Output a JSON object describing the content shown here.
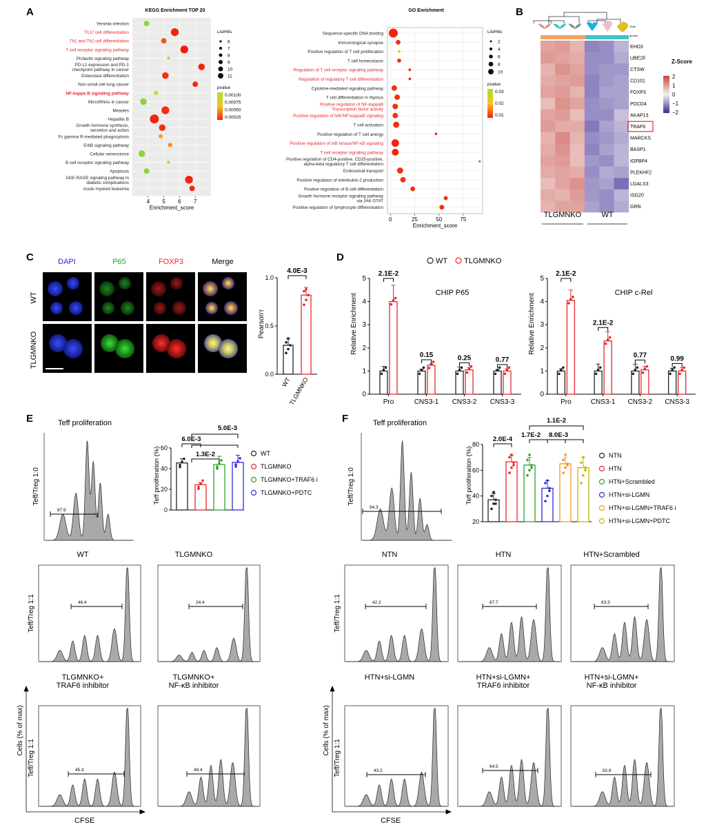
{
  "panel_letters": [
    "A",
    "B",
    "C",
    "D",
    "E",
    "F"
  ],
  "colors": {
    "red": "#e8262a",
    "orange": "#f7931e",
    "green": "#2ca02c",
    "blue": "#2b2bd4",
    "olive": "#c8b400",
    "grey": "#5a5a5a",
    "black": "#222222"
  },
  "chart_data": [
    {
      "panel": "A",
      "type": "scatter",
      "title": "KEGG Enrichment TOP 20",
      "xlabel": "Enrichment_score",
      "xlim": [
        3,
        8
      ],
      "xticks": [
        4,
        5,
        6,
        7
      ],
      "size_legend_title": "ListHits",
      "size_legend": [
        6,
        7,
        8,
        9,
        10,
        11
      ],
      "color_legend_title": "pvalue",
      "color_legend": [
        "0.00100",
        "0.00075",
        "0.00050",
        "0.00025"
      ],
      "terms": [
        {
          "label": [
            "Yersinia infection"
          ],
          "x": 3.9,
          "hits": 8,
          "color": "#8fd43a",
          "highlight": false
        },
        {
          "label": [
            "Th17 cell differentiation"
          ],
          "x": 5.7,
          "hits": 10,
          "color": "#f2240e",
          "highlight": true
        },
        {
          "label": [
            "Th1 and Th2 cell differentiation"
          ],
          "x": 5.0,
          "hits": 8,
          "color": "#f25a12",
          "highlight": true
        },
        {
          "label": [
            "T cell receptor signaling pathway"
          ],
          "x": 6.3,
          "hits": 10,
          "color": "#f21a0e",
          "highlight": true
        },
        {
          "label": [
            "Prolactin signaling pathway"
          ],
          "x": 5.3,
          "hits": 6,
          "color": "#b4df2a",
          "highlight": false
        },
        {
          "label": [
            "PD-L1 expression and PD-1",
            "checkpoint pathway in cancer"
          ],
          "x": 7.4,
          "hits": 9,
          "color": "#f2240e",
          "highlight": false
        },
        {
          "label": [
            "Osteoclast differentiation"
          ],
          "x": 5.1,
          "hits": 9,
          "color": "#f2300e",
          "highlight": false
        },
        {
          "label": [
            "Non-small cell lung cancer"
          ],
          "x": 7.0,
          "hits": 8,
          "color": "#f2240e",
          "highlight": false
        },
        {
          "label": [
            "NF-kappa B signaling pathway"
          ],
          "x": 4.5,
          "hits": 7,
          "color": "#b4df2a",
          "highlight": true,
          "bold": true
        },
        {
          "label": [
            "MicroRNAs in cancer"
          ],
          "x": 3.7,
          "hits": 9,
          "color": "#8fd43a",
          "highlight": false
        },
        {
          "label": [
            "Measles"
          ],
          "x": 5.1,
          "hits": 10,
          "color": "#f2300e",
          "highlight": false
        },
        {
          "label": [
            "Hepatitis B"
          ],
          "x": 4.4,
          "hits": 11,
          "color": "#f2240e",
          "highlight": false
        },
        {
          "label": [
            "Growth hormone synthesis,",
            "secretion and action"
          ],
          "x": 4.9,
          "hits": 9,
          "color": "#f2300e",
          "highlight": false
        },
        {
          "label": [
            "Fc gamma R-mediated phagocytosis"
          ],
          "x": 4.8,
          "hits": 7,
          "color": "#f7a21e",
          "highlight": false
        },
        {
          "label": [
            "ErbB signaling pathway"
          ],
          "x": 5.4,
          "hits": 7,
          "color": "#f78a1e",
          "highlight": false
        },
        {
          "label": [
            "Cellular senescence"
          ],
          "x": 3.6,
          "hits": 9,
          "color": "#8fd43a",
          "highlight": false
        },
        {
          "label": [
            "B cell receptor signaling pathway"
          ],
          "x": 5.3,
          "hits": 6,
          "color": "#b4df2a",
          "highlight": false
        },
        {
          "label": [
            "Apoptosis"
          ],
          "x": 3.9,
          "hits": 8,
          "color": "#8fd43a",
          "highlight": false
        },
        {
          "label": [
            "AGE-RAGE signaling pathway in",
            "diabetic complications"
          ],
          "x": 6.6,
          "hits": 10,
          "color": "#f2240e",
          "highlight": false
        },
        {
          "label": [
            "Acute myeloid leukemia"
          ],
          "x": 6.8,
          "hits": 8,
          "color": "#f2240e",
          "highlight": false
        }
      ]
    },
    {
      "panel": "A",
      "type": "scatter",
      "title": "GO Enrichment",
      "xlabel": "Enrichment_score",
      "xlim": [
        -3,
        95
      ],
      "xticks": [
        0,
        25,
        50,
        75
      ],
      "size_legend_title": "ListHits",
      "size_legend": [
        2,
        4,
        6,
        8,
        10
      ],
      "color_legend_title": "pvalue",
      "color_legend": [
        "0.03",
        "0.02",
        "0.01"
      ],
      "terms": [
        {
          "label": [
            "Sequence-specific DNA binding"
          ],
          "x": 3,
          "hits": 11,
          "color": "#f2240e",
          "highlight": false
        },
        {
          "label": [
            "Immunological synapse"
          ],
          "x": 8,
          "hits": 5,
          "color": "#f2300e",
          "highlight": false
        },
        {
          "label": [
            "Positive regulation of T cell proliferation"
          ],
          "x": 9,
          "hits": 2,
          "color": "#b4df2a",
          "highlight": false
        },
        {
          "label": [
            "T cell homeostasis"
          ],
          "x": 9,
          "hits": 4,
          "color": "#f2300e",
          "highlight": false
        },
        {
          "label": [
            "Regulation of T cell receptor signaling pathway"
          ],
          "x": 20,
          "hits": 2,
          "color": "#f2300e",
          "highlight": true
        },
        {
          "label": [
            "Regulation of regulatory T cell differentiation"
          ],
          "x": 20,
          "hits": 2,
          "color": "#f2300e",
          "highlight": true
        },
        {
          "label": [
            "Cytokine-mediated signaling pathway"
          ],
          "x": 4,
          "hits": 6,
          "color": "#f2300e",
          "highlight": false
        },
        {
          "label": [
            "T cell differentiation in thymus"
          ],
          "x": 7,
          "hits": 6,
          "color": "#f2300e",
          "highlight": false
        },
        {
          "label": [
            "Positive regulation of NF-kappaB",
            "Transcription factor activity"
          ],
          "x": 5,
          "hits": 6,
          "color": "#f2300e",
          "highlight": true
        },
        {
          "label": [
            "Positive regulation of NIK/NF-kappaB signaling"
          ],
          "x": 5,
          "hits": 6,
          "color": "#f2300e",
          "highlight": true
        },
        {
          "label": [
            "T cell activation"
          ],
          "x": 6,
          "hits": 7,
          "color": "#f2300e",
          "highlight": false
        },
        {
          "label": [
            "Positive regulation of T cell anergy"
          ],
          "x": 47,
          "hits": 2,
          "color": "#f2300e",
          "highlight": false
        },
        {
          "label": [
            "Positive regulation of IκB kinase/NF-κB signaling"
          ],
          "x": 5,
          "hits": 9,
          "color": "#f2240e",
          "highlight": true
        },
        {
          "label": [
            "T cell receptor signaling pathway"
          ],
          "x": 5,
          "hits": 8,
          "color": "#f2240e",
          "highlight": true
        },
        {
          "label": [
            "Positive regulation of CD4-positive, CD25-positive,",
            "alpha-beta regulatory T cell differentiation"
          ],
          "x": 92,
          "hits": 1,
          "color": "#f2300e",
          "highlight": false
        },
        {
          "label": [
            "Endosomal transport"
          ],
          "x": 10,
          "hits": 7,
          "color": "#f2300e",
          "highlight": false
        },
        {
          "label": [
            "Positive regulation of interleukin-2 production"
          ],
          "x": 13,
          "hits": 6,
          "color": "#f2300e",
          "highlight": false
        },
        {
          "label": [
            "Positive regulation of B cell differentiation"
          ],
          "x": 23,
          "hits": 5,
          "color": "#f2300e",
          "highlight": false
        },
        {
          "label": [
            "Growth hormone receptor signaling pathway",
            "via JAK-STAT"
          ],
          "x": 57,
          "hits": 4,
          "color": "#f2300e",
          "highlight": false
        },
        {
          "label": [
            "Positive regulation of lymphocyte differentiation"
          ],
          "x": 53,
          "hits": 5,
          "color": "#f2300e",
          "highlight": false
        }
      ]
    },
    {
      "panel": "B",
      "type": "heatmap",
      "genes": [
        "EHD3",
        "UBE2F",
        "CTSW",
        "CD101",
        "FOXP3",
        "PDCD4",
        "AKAP13",
        "TRAF6",
        "MARCKS",
        "BASP1",
        "IGFBP4",
        "PLEKHF2",
        "LGALS3",
        "ISG20",
        "GRN"
      ],
      "boxed_gene": "TRAF6",
      "groups": [
        "TLGMNKO",
        "WT"
      ],
      "top_labels": [
        "Vidfs",
        "groups"
      ],
      "legend_title": "Z-Score",
      "legend_ticks": [
        "2",
        "1",
        "0",
        "−1",
        "−2"
      ],
      "zlim": [
        -2,
        2
      ],
      "values": [
        [
          0.9,
          1.0,
          0.7,
          -1.1,
          -1.0,
          -0.6
        ],
        [
          1.0,
          0.9,
          0.8,
          -1.0,
          -1.0,
          -0.7
        ],
        [
          0.7,
          1.1,
          0.9,
          -1.0,
          -0.9,
          -0.9
        ],
        [
          0.8,
          0.9,
          1.0,
          -1.1,
          -0.9,
          -0.8
        ],
        [
          0.9,
          1.0,
          0.7,
          -1.1,
          -0.8,
          -0.8
        ],
        [
          0.6,
          1.1,
          0.9,
          -1.0,
          -0.9,
          -0.8
        ],
        [
          0.9,
          1.0,
          0.6,
          -1.0,
          -1.0,
          -0.5
        ],
        [
          1.0,
          0.8,
          0.8,
          -1.2,
          -0.8,
          -0.6
        ],
        [
          0.7,
          1.2,
          0.7,
          -1.0,
          -0.9,
          -0.7
        ],
        [
          0.8,
          1.1,
          0.6,
          -1.1,
          -0.8,
          -0.6
        ],
        [
          0.9,
          1.0,
          0.6,
          -0.9,
          -1.0,
          -0.6
        ],
        [
          0.8,
          0.9,
          0.8,
          -1.0,
          -0.7,
          -0.8
        ],
        [
          0.6,
          0.9,
          1.1,
          -0.9,
          -0.8,
          -1.3
        ],
        [
          0.8,
          0.7,
          1.0,
          -0.9,
          -1.0,
          -0.6
        ],
        [
          0.7,
          0.9,
          0.9,
          -0.8,
          -1.0,
          -0.7
        ]
      ]
    },
    {
      "panel": "C",
      "type": "bar",
      "channel_labels": [
        "DAPI",
        "P65",
        "FOXP3",
        "Merge"
      ],
      "row_labels": [
        "WT",
        "TLGMNKO"
      ],
      "ylabel": "Pearson'r",
      "ylim": [
        0,
        1.0
      ],
      "yticks": [
        0.0,
        0.5,
        1.0
      ],
      "yticklabels": [
        "0.0",
        "0.5",
        "1.0"
      ],
      "categories": [
        "WT",
        "TLGMNKO"
      ],
      "values": [
        0.3,
        0.82
      ],
      "errors": [
        0.07,
        0.08
      ],
      "points": [
        [
          0.22,
          0.26,
          0.3,
          0.33,
          0.37
        ],
        [
          0.72,
          0.77,
          0.82,
          0.86,
          0.88
        ]
      ],
      "colors": [
        "#222222",
        "#e8262a"
      ],
      "pvalue": "4.0E-3"
    },
    {
      "panel": "D",
      "type": "bar",
      "legend": [
        "WT",
        "TLGMNKO"
      ],
      "legend_colors": [
        "#222222",
        "#e8262a"
      ],
      "ylabel": "Relative Enrichment",
      "ylim": [
        0,
        5
      ],
      "yticks": [
        0,
        1,
        2,
        3,
        4,
        5
      ],
      "groups": [
        {
          "title": "CHIP P65",
          "categories": [
            "Pro",
            "CNS3-1",
            "CNS3-2",
            "CNS3-3"
          ],
          "series": [
            {
              "name": "WT",
              "values": [
                1.0,
                1.0,
                1.0,
                1.0
              ],
              "errors": [
                0.2,
                0.08,
                0.18,
                0.05
              ]
            },
            {
              "name": "TLGMNKO",
              "values": [
                4.0,
                1.25,
                1.05,
                1.0
              ],
              "errors": [
                0.7,
                0.06,
                0.1,
                0.1
              ]
            }
          ],
          "pvalues": [
            "2.1E-2",
            "0.15",
            "0.25",
            "0.77"
          ]
        },
        {
          "title": "CHIP c-Rel",
          "categories": [
            "Pro",
            "CNS3-1",
            "CNS3-2",
            "CNS3-3"
          ],
          "series": [
            {
              "name": "WT",
              "values": [
                1.0,
                1.0,
                1.0,
                1.0
              ],
              "errors": [
                0.1,
                0.3,
                0.3,
                0.12
              ]
            },
            {
              "name": "TLGMNKO",
              "values": [
                4.05,
                2.3,
                1.05,
                1.0
              ],
              "errors": [
                0.45,
                0.4,
                0.15,
                0.15
              ]
            }
          ],
          "pvalues": [
            "2.1E-2",
            "2.1E-2",
            "0.77",
            "0.99"
          ]
        }
      ]
    },
    {
      "panel": "E",
      "type": "bar",
      "ylabel": "Teff proliferation (%)",
      "ylim": [
        0,
        60
      ],
      "yticks": [
        0,
        20,
        40,
        60
      ],
      "categories": [
        "WT",
        "TLGMNKO",
        "TLGMNKO+TRAF6 i",
        "TLGMNKO+PDTC"
      ],
      "values": [
        45.5,
        24.5,
        44,
        46
      ],
      "errors": [
        4,
        2,
        8,
        7
      ],
      "colors": [
        "#222222",
        "#e8262a",
        "#2ca02c",
        "#2b2bd4"
      ],
      "pvalues": [
        "6.0E-3",
        "1.3E-2",
        "5.0E-3"
      ],
      "histograms": [
        {
          "title": "Teff proliferation",
          "value": "87.9",
          "row": "Teff/Treg 1:0"
        },
        {
          "title": "WT",
          "value": "46.4",
          "row": "Teff/Treg 1:1"
        },
        {
          "title": "TLGMNKO",
          "value": "24.4",
          "row": ""
        },
        {
          "title": "TLGMNKO+\nTRAF6 inhibitor",
          "value": "45.3",
          "row": "Teff/Treg 1:1"
        },
        {
          "title": "TLGMNKO+\nNF-κB inhibitor",
          "value": "49.4",
          "row": ""
        }
      ],
      "axis_y": "Cells (% of max)",
      "axis_x": "CFSE"
    },
    {
      "panel": "F",
      "type": "bar",
      "ylabel": "Teff proliferation (%)",
      "ylim": [
        20,
        80
      ],
      "yticks": [
        20,
        40,
        60,
        80
      ],
      "categories": [
        "NTN",
        "HTN",
        "HTN+Scrambled",
        "HTN+si-LGMN",
        "HTN+si-LGMN+TRAF6 i",
        "HTN+si-LGMN+PDTC"
      ],
      "values": [
        37,
        66.5,
        64,
        46,
        65,
        62
      ],
      "errors": [
        5,
        5,
        6,
        6,
        5,
        8
      ],
      "colors": [
        "#222222",
        "#e8262a",
        "#2ca02c",
        "#2b2bd4",
        "#f7931e",
        "#c8b400"
      ],
      "pvalues": [
        "2.0E-4",
        "1.7E-2",
        "8.0E-3",
        "1.1E-2"
      ],
      "histograms": [
        {
          "title": "Teff proliferation",
          "value": "94.3",
          "row": "Teff/Treg 1:0"
        },
        {
          "title": "NTN",
          "value": "42.2",
          "row": "Teff/Treg 1:1"
        },
        {
          "title": "HTN",
          "value": "67.7",
          "row": ""
        },
        {
          "title": "HTN+Scrambled",
          "value": "63.3",
          "row": ""
        },
        {
          "title": "HTN+si-LGMN",
          "value": "43.2",
          "row": "Teff/Treg 1:1"
        },
        {
          "title": "HTN+si-LGMN+\nTRAF6 inhibitor",
          "value": "64.5",
          "row": ""
        },
        {
          "title": "HTN+si-LGMN+\nNF-κB inhibitor",
          "value": "62.8",
          "row": ""
        }
      ],
      "axis_y": "Cells (% of max)",
      "axis_x": "CFSE"
    }
  ]
}
